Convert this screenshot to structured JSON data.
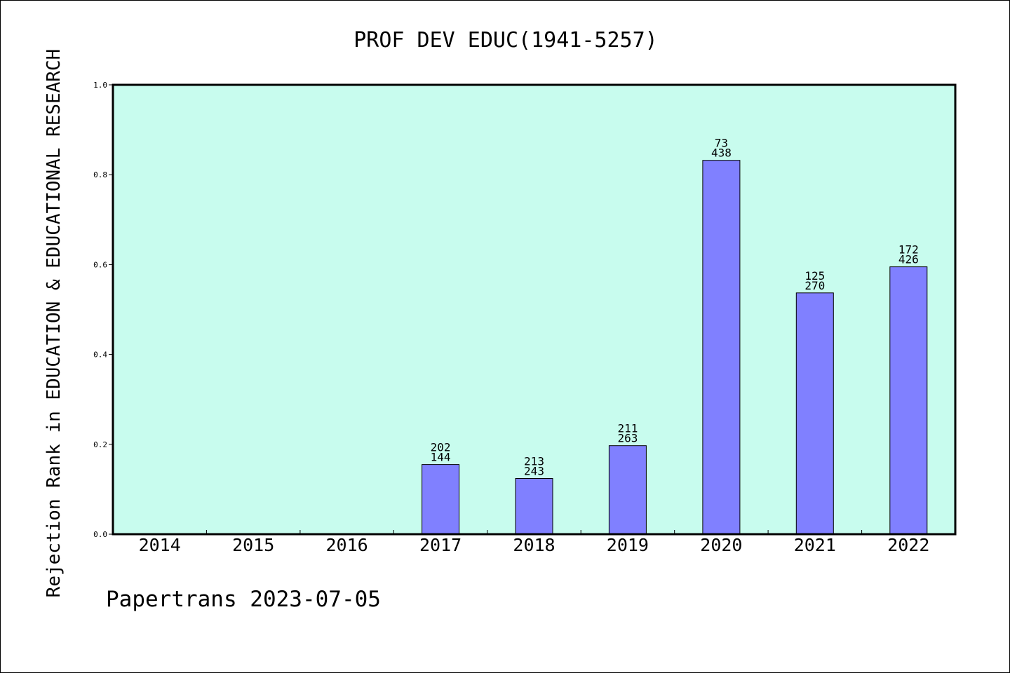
{
  "chart_data": {
    "type": "bar",
    "title": "PROF DEV EDUC(1941-5257)",
    "xlabel": "",
    "ylabel": "Rejection Rank in EDUCATION & EDUCATIONAL RESEARCH",
    "ylim": [
      0,
      1.0
    ],
    "yticks": [
      "0.0",
      "0.2",
      "0.4",
      "0.6",
      "0.8",
      "1.0"
    ],
    "categories": [
      "2014",
      "2015",
      "2016",
      "2017",
      "2018",
      "2019",
      "2020",
      "2021",
      "2022"
    ],
    "values": [
      0,
      0,
      0,
      0.155,
      0.124,
      0.197,
      0.832,
      0.537,
      0.595
    ],
    "label_top": [
      "",
      "",
      "",
      "202",
      "213",
      "211",
      "73",
      "125",
      "172"
    ],
    "label_bottom": [
      "",
      "",
      "",
      "144",
      "243",
      "263",
      "438",
      "270",
      "426"
    ],
    "grid": false,
    "legend": "none",
    "colors": {
      "plot_background": "#c8fcee",
      "bar_fill": "#8080ff",
      "bar_stroke": "#000000"
    }
  },
  "footer": {
    "text": "Papertrans 2023-07-05"
  }
}
